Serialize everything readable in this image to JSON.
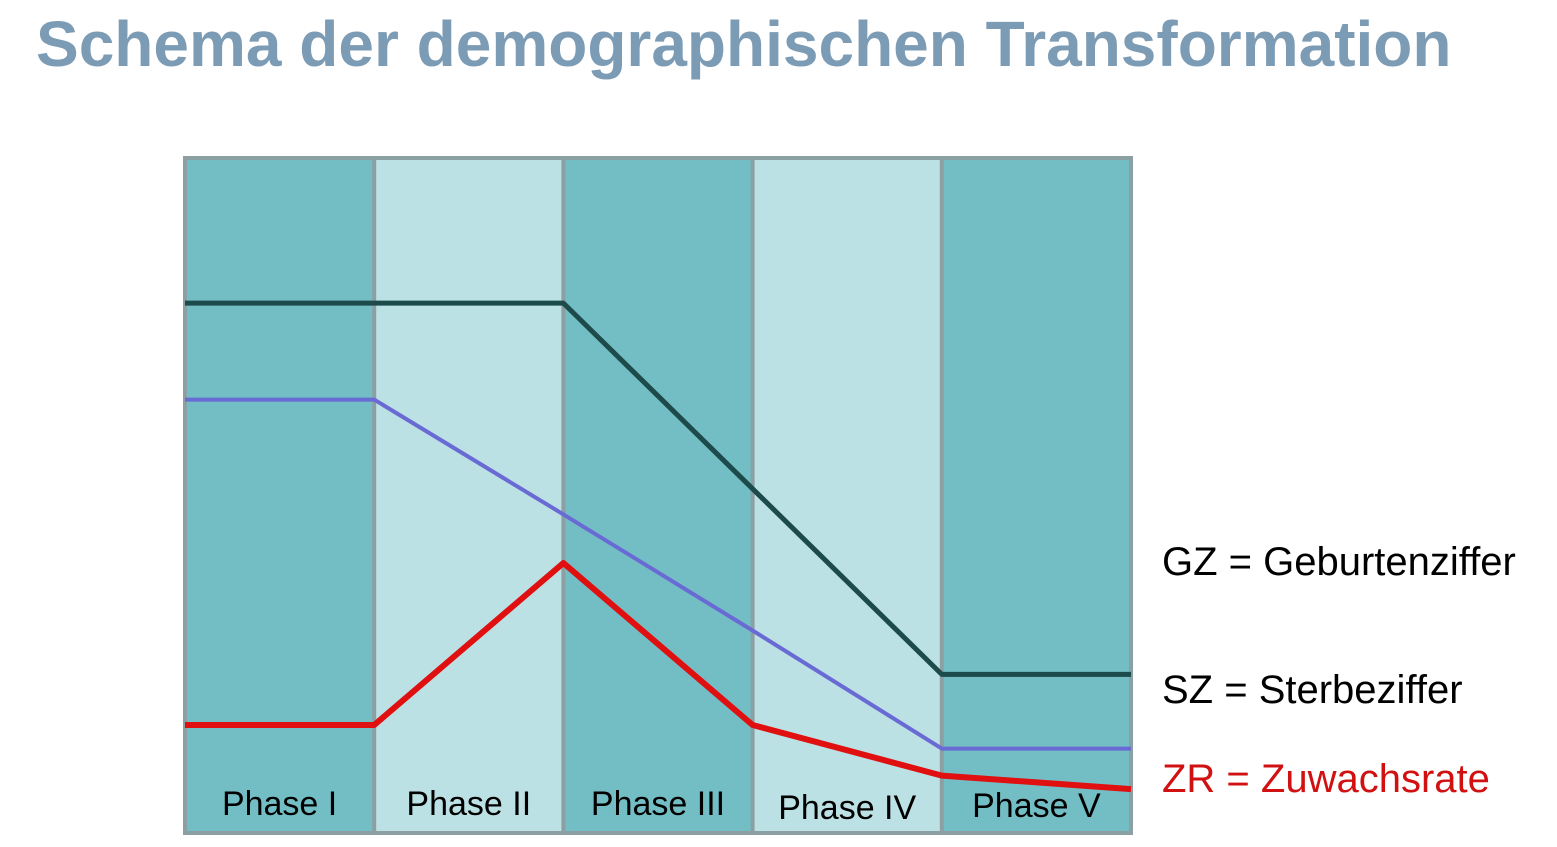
{
  "title": "Schema der demographischen Transformation",
  "colors": {
    "title": "#7c9bb5",
    "phase_dark": "#73bec5",
    "phase_light": "#bce1e5",
    "frame": "#8c9fa3",
    "birth_rate_line": "#1d4a4a",
    "death_rate_line": "#6a6ad4",
    "growth_rate_line": "#e01010",
    "legend_text": "#000000",
    "growth_legend_text": "#d11111"
  },
  "diagram": {
    "phases": [
      {
        "label": "Phase I",
        "shade": "dark"
      },
      {
        "label": "Phase II",
        "shade": "light"
      },
      {
        "label": "Phase III",
        "shade": "dark"
      },
      {
        "label": "Phase IV",
        "shade": "light"
      },
      {
        "label": "Phase V",
        "shade": "dark"
      }
    ],
    "curves": [
      {
        "key": "gz",
        "legend": "GZ = Geburtenziffer",
        "color": "#1d4a4a",
        "levels": [
          0.785,
          0.785,
          0.785,
          0.51,
          0.235,
          0.235
        ]
      },
      {
        "key": "sz",
        "legend": "SZ = Sterbeziffer",
        "color": "#6a6ad4",
        "levels": [
          0.642,
          0.642,
          0.472,
          0.3,
          0.125,
          0.125
        ]
      },
      {
        "key": "zr",
        "legend": "ZR = Zuwachsrate",
        "color": "#e01010",
        "levels": [
          0.16,
          0.16,
          0.4,
          0.16,
          0.085,
          0.065
        ]
      }
    ]
  }
}
